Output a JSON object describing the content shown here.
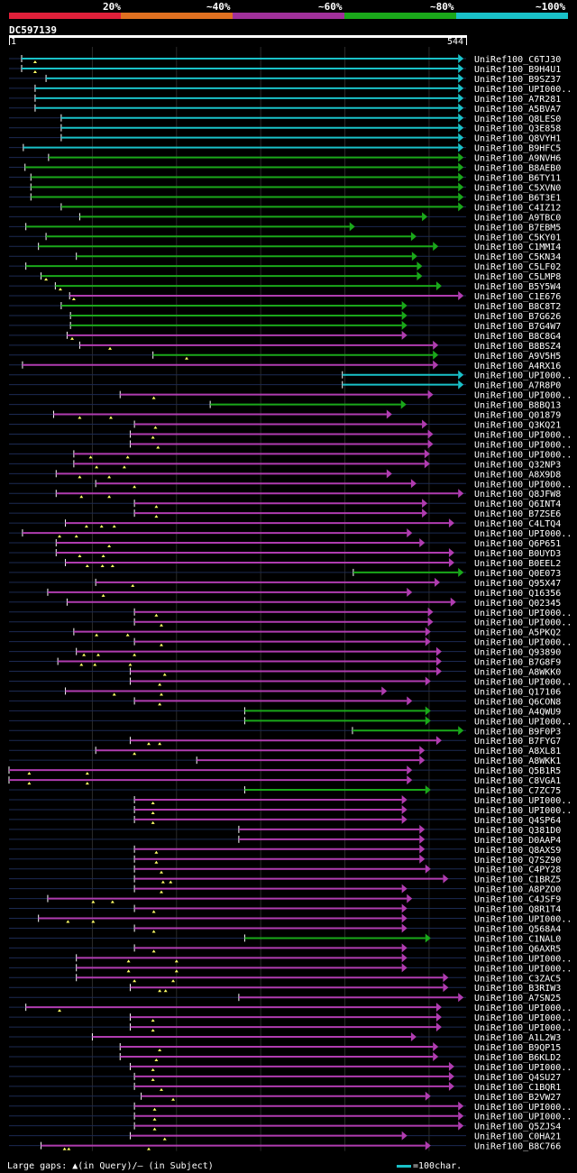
{
  "legend": {
    "labels": [
      "20%",
      "~40%",
      "~60%",
      "~80%",
      "~100%"
    ],
    "colors": [
      "#e0203a",
      "#e07020",
      "#a0309a",
      "#1aa81a",
      "#19c1c8"
    ]
  },
  "query": {
    "name": "DC597139",
    "start_label": "1",
    "end_label": "544"
  },
  "footer": {
    "gaps_text": "Large gaps: ▲(in Query)/– (in Subject)",
    "scale_text": "=100char."
  },
  "chart_data": {
    "type": "alignment",
    "query_length": 544,
    "colors": {
      "cyan": "#19c1c8",
      "green": "#1aa81a",
      "magenta": "#b03cb0"
    },
    "hits": [
      {
        "name": "UniRef100_C6TJ30",
        "start": 16,
        "end": 541,
        "color": "cyan",
        "gaps": [
          32
        ]
      },
      {
        "name": "UniRef100_B9H4U1",
        "start": 16,
        "end": 541,
        "color": "cyan",
        "gaps": [
          32
        ]
      },
      {
        "name": "UniRef100_B9SZ37",
        "start": 45,
        "end": 541,
        "color": "cyan",
        "gaps": []
      },
      {
        "name": "UniRef100_UPI000..",
        "start": 32,
        "end": 541,
        "color": "cyan",
        "gaps": []
      },
      {
        "name": "UniRef100_A7R281",
        "start": 32,
        "end": 541,
        "color": "cyan",
        "gaps": []
      },
      {
        "name": "UniRef100_A5BVA7",
        "start": 32,
        "end": 541,
        "color": "cyan",
        "gaps": []
      },
      {
        "name": "UniRef100_Q8LES0",
        "start": 63,
        "end": 541,
        "color": "cyan",
        "gaps": []
      },
      {
        "name": "UniRef100_Q3E858",
        "start": 63,
        "end": 541,
        "color": "cyan",
        "gaps": []
      },
      {
        "name": "UniRef100_Q8VYH1",
        "start": 63,
        "end": 541,
        "color": "cyan",
        "gaps": []
      },
      {
        "name": "UniRef100_B9HFC5",
        "start": 18,
        "end": 541,
        "color": "cyan",
        "gaps": []
      },
      {
        "name": "UniRef100_A9NVH6",
        "start": 48,
        "end": 541,
        "color": "green",
        "gaps": []
      },
      {
        "name": "UniRef100_B8AEB0",
        "start": 20,
        "end": 541,
        "color": "green",
        "gaps": []
      },
      {
        "name": "UniRef100_B6TY11",
        "start": 27,
        "end": 541,
        "color": "green",
        "gaps": []
      },
      {
        "name": "UniRef100_C5XVN0",
        "start": 27,
        "end": 541,
        "color": "green",
        "gaps": []
      },
      {
        "name": "UniRef100_B6T3E1",
        "start": 27,
        "end": 541,
        "color": "green",
        "gaps": []
      },
      {
        "name": "UniRef100_C4IZ12",
        "start": 63,
        "end": 541,
        "color": "green",
        "gaps": []
      },
      {
        "name": "UniRef100_A9TBC0",
        "start": 85,
        "end": 498,
        "color": "green",
        "gaps": []
      },
      {
        "name": "UniRef100_B7EBM5",
        "start": 21,
        "end": 412,
        "color": "green",
        "gaps": []
      },
      {
        "name": "UniRef100_C5KY01",
        "start": 45,
        "end": 485,
        "color": "green",
        "gaps": []
      },
      {
        "name": "UniRef100_C1MMI4",
        "start": 36,
        "end": 511,
        "color": "green",
        "gaps": []
      },
      {
        "name": "UniRef100_C5KN34",
        "start": 81,
        "end": 486,
        "color": "green",
        "gaps": []
      },
      {
        "name": "UniRef100_C5LF02",
        "start": 21,
        "end": 492,
        "color": "green",
        "gaps": []
      },
      {
        "name": "UniRef100_C5LMP8",
        "start": 39,
        "end": 492,
        "color": "green",
        "gaps": [
          45
        ]
      },
      {
        "name": "UniRef100_B5Y5W4",
        "start": 56,
        "end": 515,
        "color": "green",
        "gaps": [
          62
        ]
      },
      {
        "name": "UniRef100_C1E676",
        "start": 73,
        "end": 541,
        "color": "magenta",
        "gaps": [
          78
        ]
      },
      {
        "name": "UniRef100_B8C8T2",
        "start": 63,
        "end": 474,
        "color": "green",
        "gaps": []
      },
      {
        "name": "UniRef100_B7G626",
        "start": 74,
        "end": 474,
        "color": "green",
        "gaps": []
      },
      {
        "name": "UniRef100_B7G4W7",
        "start": 74,
        "end": 474,
        "color": "green",
        "gaps": []
      },
      {
        "name": "UniRef100_B8C8G4",
        "start": 70,
        "end": 474,
        "color": "magenta",
        "gaps": [
          76
        ]
      },
      {
        "name": "UniRef100_B8BSZ4",
        "start": 85,
        "end": 511,
        "color": "magenta",
        "gaps": [
          121
        ]
      },
      {
        "name": "UniRef100_A9V5H5",
        "start": 172,
        "end": 511,
        "color": "green",
        "gaps": [
          212
        ]
      },
      {
        "name": "UniRef100_A4RX16",
        "start": 17,
        "end": 511,
        "color": "magenta",
        "gaps": []
      },
      {
        "name": "UniRef100_UPI000..",
        "start": 397,
        "end": 541,
        "color": "cyan",
        "gaps": []
      },
      {
        "name": "UniRef100_A7R8P0",
        "start": 397,
        "end": 541,
        "color": "cyan",
        "gaps": []
      },
      {
        "name": "UniRef100_UPI000..",
        "start": 133,
        "end": 505,
        "color": "magenta",
        "gaps": [
          173
        ]
      },
      {
        "name": "UniRef100_B8BQ13",
        "start": 240,
        "end": 473,
        "color": "green",
        "gaps": []
      },
      {
        "name": "UniRef100_Q01879",
        "start": 54,
        "end": 456,
        "color": "magenta",
        "gaps": [
          85,
          122
        ]
      },
      {
        "name": "UniRef100_Q3KQ21",
        "start": 150,
        "end": 498,
        "color": "magenta",
        "gaps": [
          175
        ]
      },
      {
        "name": "UniRef100_UPI000..",
        "start": 145,
        "end": 505,
        "color": "magenta",
        "gaps": [
          172
        ]
      },
      {
        "name": "UniRef100_UPI000..",
        "start": 145,
        "end": 505,
        "color": "magenta",
        "gaps": [
          178
        ]
      },
      {
        "name": "UniRef100_UPI000..",
        "start": 78,
        "end": 501,
        "color": "magenta",
        "gaps": [
          98,
          142
        ]
      },
      {
        "name": "UniRef100_Q32NP3",
        "start": 78,
        "end": 501,
        "color": "magenta",
        "gaps": [
          105,
          138
        ]
      },
      {
        "name": "UniRef100_A8X9D8",
        "start": 57,
        "end": 456,
        "color": "magenta",
        "gaps": [
          85,
          120
        ]
      },
      {
        "name": "UniRef100_UPI000..",
        "start": 104,
        "end": 485,
        "color": "magenta",
        "gaps": [
          150
        ]
      },
      {
        "name": "UniRef100_Q8JFW8",
        "start": 57,
        "end": 541,
        "color": "magenta",
        "gaps": [
          87,
          120
        ]
      },
      {
        "name": "UniRef100_Q6INT4",
        "start": 150,
        "end": 498,
        "color": "magenta",
        "gaps": [
          176
        ]
      },
      {
        "name": "UniRef100_B7ZSE6",
        "start": 150,
        "end": 498,
        "color": "magenta",
        "gaps": [
          176
        ]
      },
      {
        "name": "UniRef100_C4LTQ4",
        "start": 68,
        "end": 530,
        "color": "magenta",
        "gaps": [
          93,
          111,
          126
        ]
      },
      {
        "name": "UniRef100_UPI000..",
        "start": 17,
        "end": 480,
        "color": "magenta",
        "gaps": [
          61,
          81
        ]
      },
      {
        "name": "UniRef100_Q6P651",
        "start": 57,
        "end": 495,
        "color": "magenta",
        "gaps": [
          120
        ]
      },
      {
        "name": "UniRef100_B0UYD3",
        "start": 57,
        "end": 530,
        "color": "magenta",
        "gaps": [
          85,
          113
        ]
      },
      {
        "name": "UniRef100_B0EEL2",
        "start": 68,
        "end": 530,
        "color": "magenta",
        "gaps": [
          94,
          112,
          124
        ]
      },
      {
        "name": "UniRef100_Q0E073",
        "start": 410,
        "end": 541,
        "color": "green",
        "gaps": []
      },
      {
        "name": "UniRef100_Q95X47",
        "start": 104,
        "end": 513,
        "color": "magenta",
        "gaps": [
          148
        ]
      },
      {
        "name": "UniRef100_Q16356",
        "start": 47,
        "end": 480,
        "color": "magenta",
        "gaps": [
          113
        ]
      },
      {
        "name": "UniRef100_Q02345",
        "start": 70,
        "end": 532,
        "color": "magenta",
        "gaps": []
      },
      {
        "name": "UniRef100_UPI000..",
        "start": 150,
        "end": 505,
        "color": "magenta",
        "gaps": [
          176
        ]
      },
      {
        "name": "UniRef100_UPI000..",
        "start": 150,
        "end": 505,
        "color": "magenta",
        "gaps": [
          182
        ]
      },
      {
        "name": "UniRef100_A5PKQ2",
        "start": 78,
        "end": 502,
        "color": "magenta",
        "gaps": [
          105,
          142
        ]
      },
      {
        "name": "UniRef100_UPI000..",
        "start": 150,
        "end": 502,
        "color": "magenta",
        "gaps": [
          182
        ]
      },
      {
        "name": "UniRef100_Q93890",
        "start": 81,
        "end": 515,
        "color": "magenta",
        "gaps": [
          90,
          107,
          150
        ]
      },
      {
        "name": "UniRef100_B7G8F9",
        "start": 59,
        "end": 515,
        "color": "magenta",
        "gaps": [
          87,
          103,
          145
        ]
      },
      {
        "name": "UniRef100_A8WKK0",
        "start": 145,
        "end": 515,
        "color": "magenta",
        "gaps": [
          186
        ]
      },
      {
        "name": "UniRef100_UPI000..",
        "start": 145,
        "end": 502,
        "color": "magenta",
        "gaps": [
          180
        ]
      },
      {
        "name": "UniRef100_Q17106",
        "start": 68,
        "end": 450,
        "color": "magenta",
        "gaps": [
          126,
          182
        ]
      },
      {
        "name": "UniRef100_Q6CON8",
        "start": 150,
        "end": 480,
        "color": "magenta",
        "gaps": [
          180
        ]
      },
      {
        "name": "UniRef100_A4QWU9",
        "start": 281,
        "end": 502,
        "color": "green",
        "gaps": []
      },
      {
        "name": "UniRef100_UPI000..",
        "start": 281,
        "end": 502,
        "color": "green",
        "gaps": []
      },
      {
        "name": "UniRef100_B9F0P3",
        "start": 409,
        "end": 541,
        "color": "green",
        "gaps": []
      },
      {
        "name": "UniRef100_B7FYG7",
        "start": 145,
        "end": 515,
        "color": "magenta",
        "gaps": [
          180,
          167
        ]
      },
      {
        "name": "UniRef100_A8XL81",
        "start": 104,
        "end": 495,
        "color": "magenta",
        "gaps": [
          150
        ]
      },
      {
        "name": "UniRef100_A8WKK1",
        "start": 224,
        "end": 495,
        "color": "magenta",
        "gaps": []
      },
      {
        "name": "UniRef100_Q5B1R5",
        "start": 1,
        "end": 480,
        "color": "magenta",
        "gaps": [
          25,
          94
        ]
      },
      {
        "name": "UniRef100_C8VGA1",
        "start": 1,
        "end": 480,
        "color": "magenta",
        "gaps": [
          25,
          94
        ]
      },
      {
        "name": "UniRef100_C7ZC75",
        "start": 281,
        "end": 502,
        "color": "green",
        "gaps": []
      },
      {
        "name": "UniRef100_UPI000..",
        "start": 150,
        "end": 474,
        "color": "magenta",
        "gaps": [
          172
        ]
      },
      {
        "name": "UniRef100_UPI000..",
        "start": 150,
        "end": 474,
        "color": "magenta",
        "gaps": [
          172
        ]
      },
      {
        "name": "UniRef100_Q4SP64",
        "start": 150,
        "end": 474,
        "color": "magenta",
        "gaps": [
          172
        ]
      },
      {
        "name": "UniRef100_Q381D0",
        "start": 274,
        "end": 495,
        "color": "magenta",
        "gaps": []
      },
      {
        "name": "UniRef100_D0AAP4",
        "start": 274,
        "end": 495,
        "color": "magenta",
        "gaps": []
      },
      {
        "name": "UniRef100_Q8AXS9",
        "start": 150,
        "end": 495,
        "color": "magenta",
        "gaps": [
          176
        ]
      },
      {
        "name": "UniRef100_Q7SZ90",
        "start": 150,
        "end": 495,
        "color": "magenta",
        "gaps": [
          176
        ]
      },
      {
        "name": "UniRef100_C4PY28",
        "start": 150,
        "end": 502,
        "color": "magenta",
        "gaps": [
          182
        ]
      },
      {
        "name": "UniRef100_C1BRZ5",
        "start": 150,
        "end": 523,
        "color": "magenta",
        "gaps": [
          184,
          193
        ]
      },
      {
        "name": "UniRef100_A8PZO0",
        "start": 150,
        "end": 474,
        "color": "magenta",
        "gaps": [
          182
        ]
      },
      {
        "name": "UniRef100_C4JSF9",
        "start": 47,
        "end": 480,
        "color": "magenta",
        "gaps": [
          101,
          124
        ]
      },
      {
        "name": "UniRef100_Q8R1T4",
        "start": 150,
        "end": 474,
        "color": "magenta",
        "gaps": [
          173
        ]
      },
      {
        "name": "UniRef100_UPI000..",
        "start": 36,
        "end": 474,
        "color": "magenta",
        "gaps": [
          71,
          101
        ]
      },
      {
        "name": "UniRef100_Q568A4",
        "start": 150,
        "end": 474,
        "color": "magenta",
        "gaps": [
          173
        ]
      },
      {
        "name": "UniRef100_C1NAL0",
        "start": 281,
        "end": 502,
        "color": "green",
        "gaps": []
      },
      {
        "name": "UniRef100_Q6AXR5",
        "start": 150,
        "end": 474,
        "color": "magenta",
        "gaps": [
          173
        ]
      },
      {
        "name": "UniRef100_UPI000..",
        "start": 81,
        "end": 474,
        "color": "magenta",
        "gaps": [
          143,
          200
        ]
      },
      {
        "name": "UniRef100_UPI000..",
        "start": 81,
        "end": 474,
        "color": "magenta",
        "gaps": [
          143,
          200
        ]
      },
      {
        "name": "UniRef100_C3ZAC5",
        "start": 81,
        "end": 523,
        "color": "magenta",
        "gaps": [
          150,
          196
        ]
      },
      {
        "name": "UniRef100_B3RIW3",
        "start": 145,
        "end": 523,
        "color": "magenta",
        "gaps": [
          180,
          187
        ]
      },
      {
        "name": "UniRef100_A7SN25",
        "start": 274,
        "end": 541,
        "color": "magenta",
        "gaps": []
      },
      {
        "name": "UniRef100_UPI000..",
        "start": 21,
        "end": 515,
        "color": "magenta",
        "gaps": [
          61
        ]
      },
      {
        "name": "UniRef100_UPI000..",
        "start": 145,
        "end": 515,
        "color": "magenta",
        "gaps": [
          172
        ]
      },
      {
        "name": "UniRef100_UPI000..",
        "start": 145,
        "end": 515,
        "color": "magenta",
        "gaps": [
          172
        ]
      },
      {
        "name": "UniRef100_A1L2W3",
        "start": 100,
        "end": 485,
        "color": "magenta",
        "gaps": []
      },
      {
        "name": "UniRef100_B9QP15",
        "start": 133,
        "end": 511,
        "color": "magenta",
        "gaps": [
          180
        ]
      },
      {
        "name": "UniRef100_B6KLD2",
        "start": 133,
        "end": 511,
        "color": "magenta",
        "gaps": [
          176
        ]
      },
      {
        "name": "UniRef100_UPI000..",
        "start": 145,
        "end": 530,
        "color": "magenta",
        "gaps": [
          172
        ]
      },
      {
        "name": "UniRef100_Q4SU27",
        "start": 150,
        "end": 530,
        "color": "magenta",
        "gaps": [
          172
        ]
      },
      {
        "name": "UniRef100_C1BQR1",
        "start": 150,
        "end": 530,
        "color": "magenta",
        "gaps": [
          182
        ]
      },
      {
        "name": "UniRef100_B2VW27",
        "start": 158,
        "end": 502,
        "color": "magenta",
        "gaps": [
          196
        ]
      },
      {
        "name": "UniRef100_UPI000..",
        "start": 150,
        "end": 541,
        "color": "magenta",
        "gaps": [
          174
        ]
      },
      {
        "name": "UniRef100_UPI000..",
        "start": 150,
        "end": 541,
        "color": "magenta",
        "gaps": [
          174
        ]
      },
      {
        "name": "UniRef100_Q5ZJS4",
        "start": 150,
        "end": 541,
        "color": "magenta",
        "gaps": [
          174
        ]
      },
      {
        "name": "UniRef100_C0HA21",
        "start": 145,
        "end": 474,
        "color": "magenta",
        "gaps": [
          186
        ]
      },
      {
        "name": "UniRef100_B8C766",
        "start": 39,
        "end": 502,
        "color": "magenta",
        "gaps": [
          67,
          72,
          167
        ]
      }
    ]
  }
}
